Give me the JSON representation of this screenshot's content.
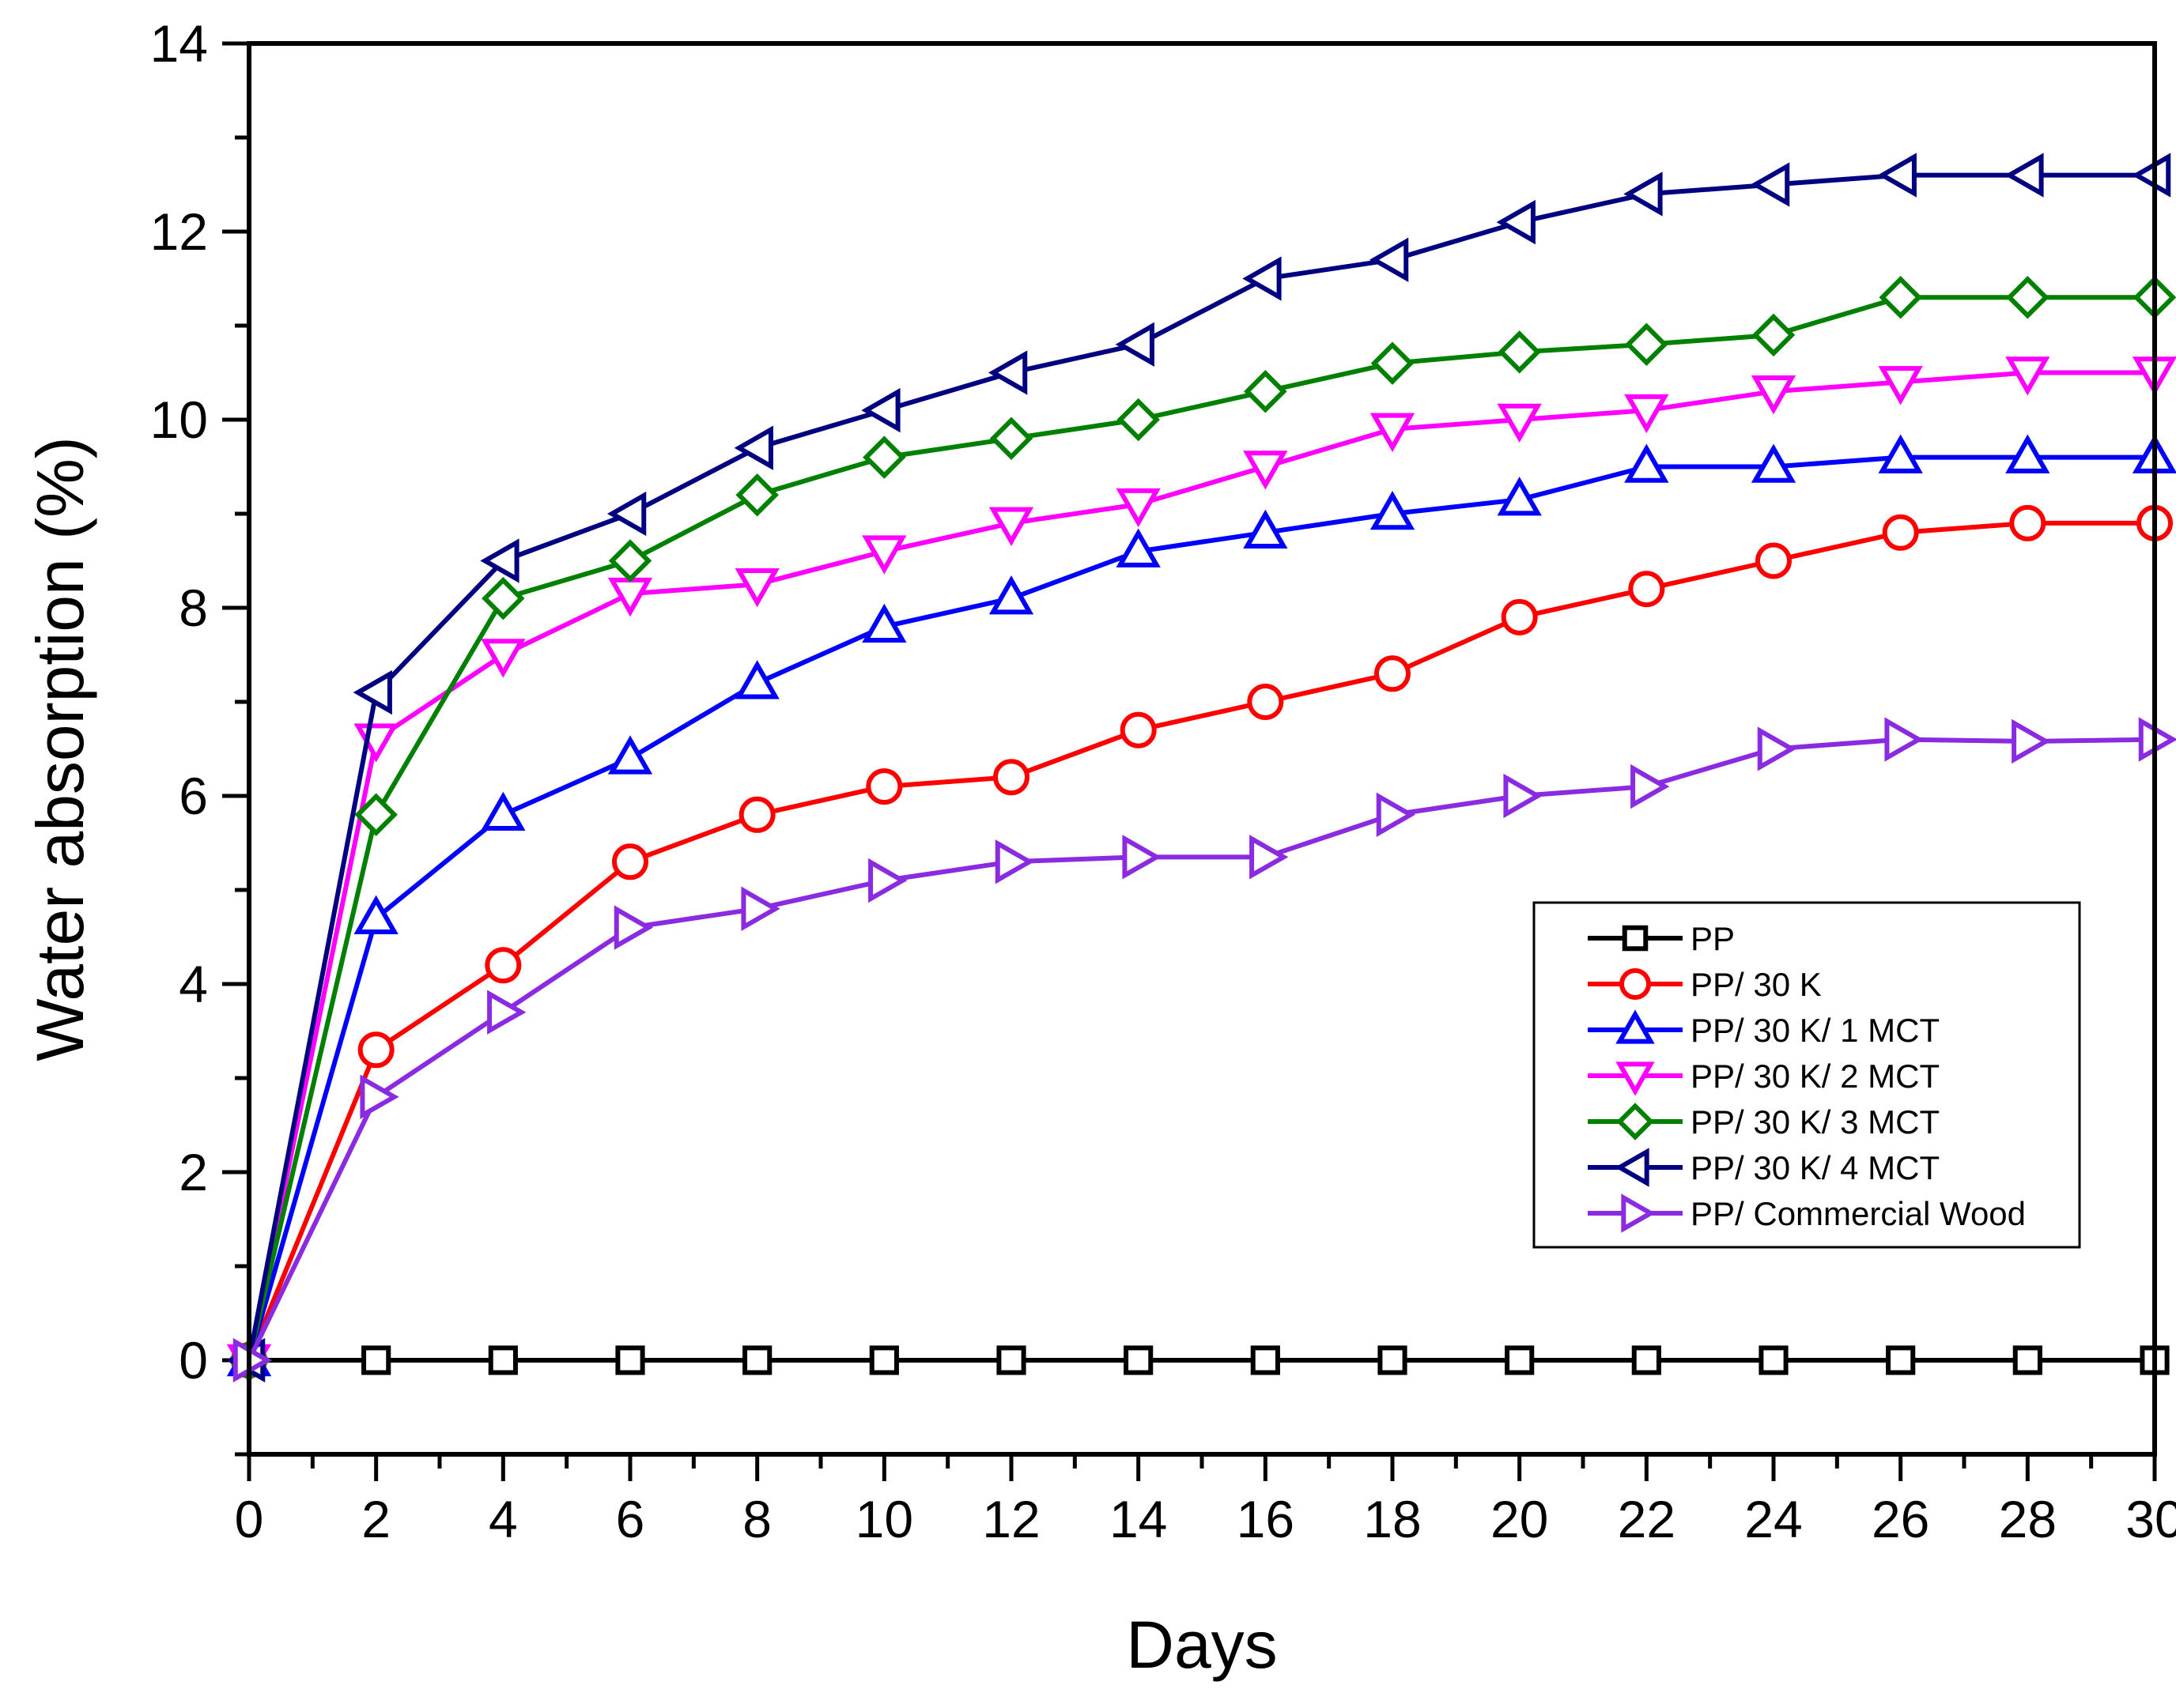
{
  "chart_data": {
    "type": "line",
    "xlabel": "Days",
    "ylabel": "Water absorption (%)",
    "xlim": [
      0,
      30
    ],
    "ylim": [
      -1,
      14
    ],
    "xticks": [
      0,
      2,
      4,
      6,
      8,
      10,
      12,
      14,
      16,
      18,
      20,
      22,
      24,
      26,
      28,
      30
    ],
    "yticks": [
      0,
      2,
      4,
      6,
      8,
      10,
      12,
      14
    ],
    "x": [
      0,
      2,
      4,
      6,
      8,
      10,
      12,
      14,
      16,
      18,
      20,
      22,
      24,
      26,
      28,
      30
    ],
    "legend_position": "lower-right",
    "series": [
      {
        "name": "PP",
        "marker": "square",
        "color": "#000000",
        "values": [
          0,
          0,
          0,
          0,
          0,
          0,
          0,
          0,
          0,
          0,
          0,
          0,
          0,
          0,
          0,
          0
        ]
      },
      {
        "name": "PP/ 30 K",
        "marker": "circle",
        "color": "#ff0000",
        "values": [
          0,
          3.3,
          4.2,
          5.3,
          5.8,
          6.1,
          6.2,
          6.7,
          7.0,
          7.3,
          7.9,
          8.2,
          8.5,
          8.8,
          8.9,
          8.9
        ]
      },
      {
        "name": "PP/ 30 K/ 1 MCT",
        "marker": "triangle-up",
        "color": "#0000ff",
        "values": [
          0,
          4.7,
          5.8,
          6.4,
          7.2,
          7.8,
          8.1,
          8.6,
          8.8,
          9.0,
          9.15,
          9.5,
          9.5,
          9.6,
          9.6,
          9.6
        ]
      },
      {
        "name": "PP/ 30 K/ 2 MCT",
        "marker": "triangle-down",
        "color": "#ff00ff",
        "values": [
          0,
          6.6,
          7.5,
          8.15,
          8.25,
          8.6,
          8.9,
          9.1,
          9.5,
          9.9,
          10.0,
          10.1,
          10.3,
          10.4,
          10.5,
          10.5
        ]
      },
      {
        "name": "PP/ 30 K/ 3 MCT",
        "marker": "diamond",
        "color": "#008000",
        "values": [
          0,
          5.8,
          8.1,
          8.5,
          9.2,
          9.6,
          9.8,
          10.0,
          10.3,
          10.6,
          10.72,
          10.8,
          10.9,
          11.3,
          11.3,
          11.3
        ]
      },
      {
        "name": "PP/ 30 K/ 4 MCT",
        "marker": "triangle-left",
        "color": "#000080",
        "values": [
          0,
          7.1,
          8.5,
          9.0,
          9.7,
          10.1,
          10.5,
          10.8,
          11.5,
          11.7,
          12.1,
          12.4,
          12.5,
          12.6,
          12.6,
          12.6
        ]
      },
      {
        "name": "PP/ Commercial Wood",
        "marker": "triangle-right",
        "color": "#8a2be2",
        "values": [
          0,
          2.8,
          3.7,
          4.6,
          4.8,
          5.1,
          5.3,
          5.35,
          5.35,
          5.8,
          6.0,
          6.1,
          6.5,
          6.6,
          6.58,
          6.6
        ]
      }
    ]
  }
}
